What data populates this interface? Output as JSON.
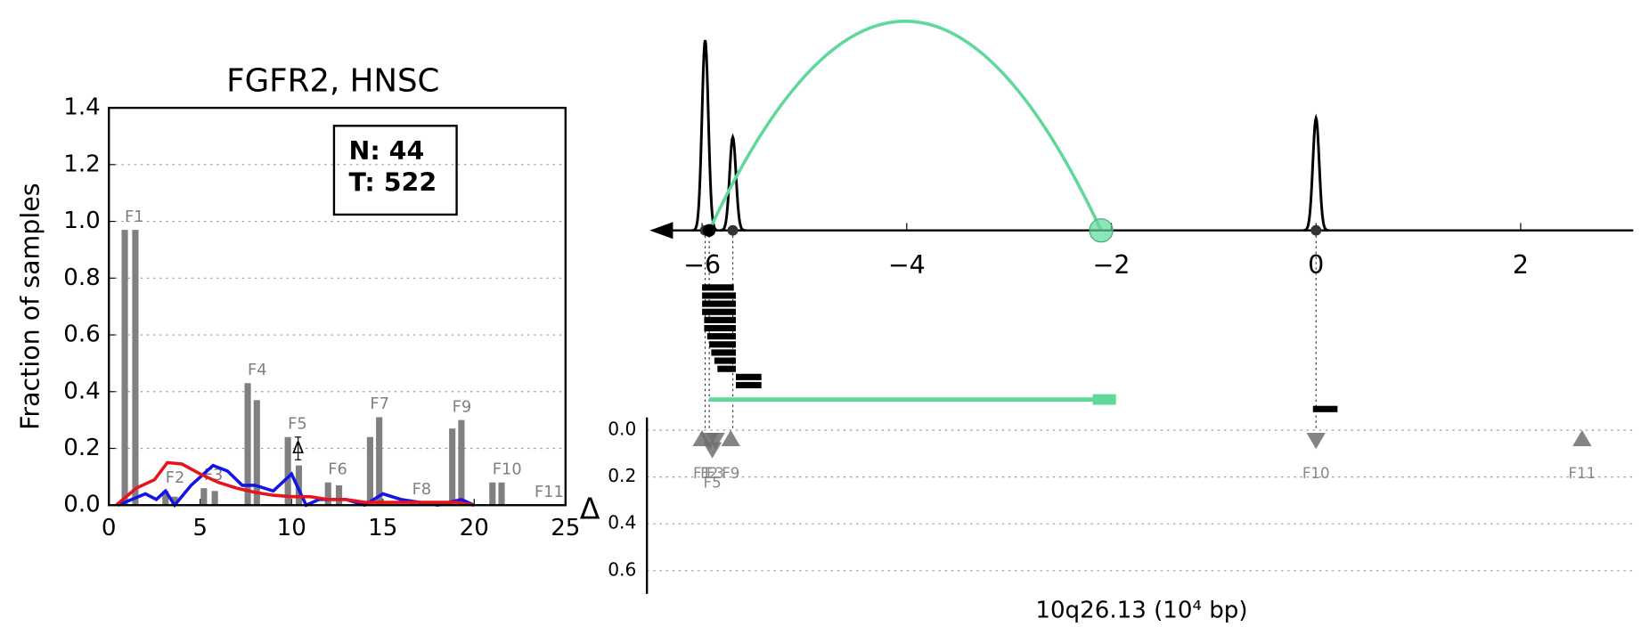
{
  "chart_data": [
    {
      "type": "bar",
      "title": "FGFR2, HNSC",
      "ylabel": "Fraction of samples",
      "xlim": [
        0,
        25
      ],
      "xticks": [
        0,
        5,
        10,
        15,
        20,
        25
      ],
      "ylim": [
        0,
        1.4
      ],
      "yticks": [
        {
          "value": 0,
          "label": "0.0"
        },
        0.2,
        0.4,
        0.6,
        0.8,
        {
          "value": 1,
          "label": "1.0"
        },
        1.2,
        1.4
      ],
      "grid": true,
      "color": "#808080",
      "legend_lines": [
        "N: 44",
        "T: 522"
      ],
      "exons": [
        {
          "label": "F1",
          "x": [
            0.87,
            1.45
          ],
          "values": [
            0.97,
            0.97
          ]
        },
        {
          "label": "F2",
          "x": [
            3.1,
            3.6
          ],
          "values": [
            0.05,
            0.03
          ]
        },
        {
          "label": "F3",
          "x": [
            5.2,
            5.8
          ],
          "values": [
            0.06,
            0.05
          ]
        },
        {
          "label": "F4",
          "x": [
            7.6,
            8.1
          ],
          "values": [
            0.43,
            0.37
          ]
        },
        {
          "label": "F5",
          "x": [
            9.8,
            10.4
          ],
          "values": [
            0.24,
            0.14
          ]
        },
        {
          "label": "F6",
          "x": [
            12.0,
            12.6
          ],
          "values": [
            0.08,
            0.07
          ]
        },
        {
          "label": "F7",
          "x": [
            14.3,
            14.8
          ],
          "values": [
            0.24,
            0.31
          ]
        },
        {
          "label": "F8",
          "x": [
            16.6,
            17.1
          ],
          "values": [
            0.01,
            0.01
          ]
        },
        {
          "label": "F9",
          "x": [
            18.8,
            19.3
          ],
          "values": [
            0.27,
            0.3
          ]
        },
        {
          "label": "F10",
          "x": [
            21.0,
            21.5
          ],
          "values": [
            0.08,
            0.08
          ]
        },
        {
          "label": "F11",
          "x": [
            23.3,
            23.8
          ],
          "values": [
            0,
            0
          ]
        }
      ],
      "series": [
        {
          "color": "#1414e6",
          "x": [
            0.5,
            2,
            2.6,
            3.1,
            3.6,
            4.5,
            5.7,
            6.5,
            7.3,
            8,
            9,
            10,
            10.8,
            11.5,
            13,
            14,
            15,
            16,
            17,
            18,
            19.3,
            20
          ],
          "values": [
            0,
            0.04,
            0.02,
            0.05,
            0,
            0.07,
            0.14,
            0.12,
            0.07,
            0.07,
            0.05,
            0.11,
            0,
            0.02,
            0.02,
            0,
            0.04,
            0.02,
            0.01,
            0,
            0.02,
            0
          ]
        },
        {
          "color": "#e8141c",
          "x": [
            0.4,
            1.5,
            2.5,
            3.2,
            4,
            5,
            6,
            7,
            8,
            9,
            10,
            11,
            12,
            13,
            14,
            15,
            16,
            17,
            18,
            19,
            20
          ],
          "values": [
            0,
            0.06,
            0.09,
            0.15,
            0.145,
            0.11,
            0.08,
            0.06,
            0.045,
            0.035,
            0.03,
            0.03,
            0.02,
            0.02,
            0.01,
            0.01,
            0.01,
            0.01,
            0.01,
            0.01,
            0
          ]
        }
      ],
      "delta_marker": {
        "label": "Δ",
        "x": 10.36,
        "value": 0.2,
        "error": 0.04
      }
    },
    {
      "type": "genome",
      "xlabel": "10q26.13 (10⁴ bp)",
      "ylabel": "Δ",
      "xlim": [
        -6.45,
        3.1
      ],
      "xticks": [
        {
          "value": -6,
          "label": "−6"
        },
        {
          "value": -4,
          "label": "−4"
        },
        {
          "value": -2,
          "label": "−2"
        },
        0,
        2
      ],
      "ylim": [
        0,
        0.7
      ],
      "yticks": [
        {
          "value": 0,
          "label": "0.0"
        },
        0.2,
        0.4,
        0.6
      ],
      "grid": true,
      "coverage_peaks": [
        {
          "x": -5.97,
          "value": 1.0
        },
        {
          "x": -5.7,
          "value": 0.49
        },
        {
          "x": 0,
          "value": 0.59
        }
      ],
      "junction": {
        "start": -5.93,
        "end": -2.1,
        "color": "#5fd89a"
      },
      "reads": [
        {
          "start": -6.0,
          "end": -5.69
        },
        {
          "start": -6.0,
          "end": -5.67
        },
        {
          "start": -6.0,
          "end": -5.67
        },
        {
          "start": -6.0,
          "end": -5.67
        },
        {
          "start": -5.98,
          "end": -5.67
        },
        {
          "start": -5.98,
          "end": -5.67
        },
        {
          "start": -5.95,
          "end": -5.67
        },
        {
          "start": -5.93,
          "end": -5.67
        },
        {
          "start": -5.91,
          "end": -5.67
        },
        {
          "start": -5.88,
          "end": -5.67
        },
        {
          "start": -5.85,
          "end": -5.67
        },
        {
          "start": -5.67,
          "end": -5.42
        },
        {
          "start": -5.67,
          "end": -5.42
        },
        {
          "start": -0.03,
          "end": 0.21
        }
      ],
      "exons": [
        {
          "label": "F1",
          "x": -6.0,
          "value": 0.04,
          "direction": "up"
        },
        {
          "label": "F2",
          "x": -5.93,
          "value": 0.04,
          "direction": "down"
        },
        {
          "label": "F3",
          "x": -5.87,
          "value": 0.04,
          "direction": "down"
        },
        {
          "label": "F5",
          "x": -5.9,
          "value": 0.08,
          "direction": "down"
        },
        {
          "label": "F9",
          "x": -5.72,
          "value": 0.04,
          "direction": "up"
        },
        {
          "label": "F10",
          "x": 0.0,
          "value": 0.04,
          "direction": "down"
        },
        {
          "label": "F11",
          "x": 2.6,
          "value": 0.04,
          "direction": "up"
        }
      ]
    }
  ]
}
